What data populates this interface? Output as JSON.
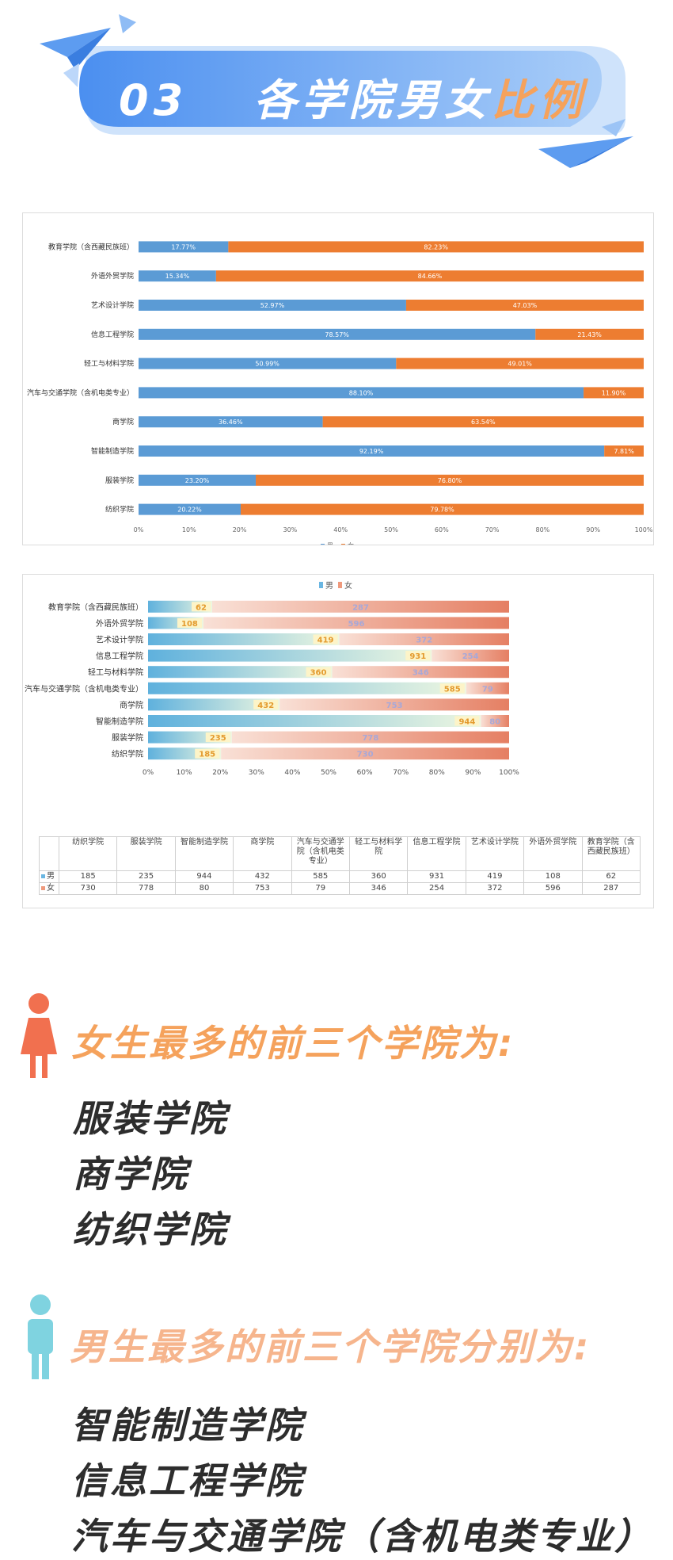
{
  "header": {
    "number": "03",
    "title_main": "各学院男女",
    "title_highlight": "比例"
  },
  "colors": {
    "male": "#5b9bd5",
    "female": "#ed7d31",
    "banner": "#6fa8ef",
    "female_title": "#f5a25c",
    "male_title": "#f6b58d",
    "female_figure": "#f1704f",
    "male_figure": "#7fd3e0"
  },
  "chart_data": [
    {
      "type": "bar",
      "orientation": "horizontal",
      "stacked": "percent",
      "categories": [
        "教育学院（含西藏民族班）",
        "外语外贸学院",
        "艺术设计学院",
        "信息工程学院",
        "轻工与材料学院",
        "汽车与交通学院（含机电类专业）",
        "商学院",
        "智能制造学院",
        "服装学院",
        "纺织学院"
      ],
      "series": [
        {
          "name": "男",
          "values": [
            17.77,
            15.34,
            52.97,
            78.57,
            50.99,
            88.1,
            36.46,
            92.19,
            23.2,
            20.22
          ],
          "labels": [
            "17.77%",
            "15.34%",
            "52.97%",
            "78.57%",
            "50.99%",
            "88.10%",
            "36.46%",
            "92.19%",
            "23.20%",
            "20.22%"
          ]
        },
        {
          "name": "女",
          "values": [
            82.23,
            84.66,
            47.03,
            21.43,
            49.01,
            11.9,
            63.54,
            7.81,
            76.8,
            79.78
          ],
          "labels": [
            "82.23%",
            "84.66%",
            "47.03%",
            "21.43%",
            "49.01%",
            "11.90%",
            "63.54%",
            "7.81%",
            "76.80%",
            "79.78%"
          ]
        }
      ],
      "xticks": [
        "0%",
        "10%",
        "20%",
        "30%",
        "40%",
        "50%",
        "60%",
        "70%",
        "80%",
        "90%",
        "100%"
      ],
      "xlim": [
        0,
        100
      ],
      "legend": "bottom-center",
      "grid": false
    },
    {
      "type": "bar",
      "orientation": "horizontal",
      "stacked": "percent",
      "categories": [
        "教育学院（含西藏民族班）",
        "外语外贸学院",
        "艺术设计学院",
        "信息工程学院",
        "轻工与材料学院",
        "汽车与交通学院（含机电类专业）",
        "商学院",
        "智能制造学院",
        "服装学院",
        "纺织学院"
      ],
      "series": [
        {
          "name": "男",
          "values": [
            62,
            108,
            419,
            931,
            360,
            585,
            432,
            944,
            235,
            185
          ]
        },
        {
          "name": "女",
          "values": [
            287,
            596,
            372,
            254,
            346,
            79,
            753,
            80,
            778,
            730
          ]
        }
      ],
      "xticks": [
        "0%",
        "10%",
        "20%",
        "30%",
        "40%",
        "50%",
        "60%",
        "70%",
        "80%",
        "90%",
        "100%"
      ],
      "xlim": [
        0,
        100
      ],
      "legend": "top-center",
      "grid": false,
      "table": {
        "columns": [
          "纺织学院",
          "服装学院",
          "智能制造学院",
          "商学院",
          "汽车与交通学院（含机电类专业）",
          "轻工与材料学院",
          "信息工程学院",
          "艺术设计学院",
          "外语外贸学院",
          "教育学院（含西藏民族班）"
        ],
        "rows": [
          {
            "name": "男",
            "values": [
              185,
              235,
              944,
              432,
              585,
              360,
              931,
              419,
              108,
              62
            ]
          },
          {
            "name": "女",
            "values": [
              730,
              778,
              80,
              753,
              79,
              346,
              254,
              372,
              596,
              287
            ]
          }
        ]
      }
    }
  ],
  "female_section": {
    "title": "女生最多的前三个学院为:",
    "items": [
      "服装学院",
      "商学院",
      "纺织学院"
    ]
  },
  "male_section": {
    "title": "男生最多的前三个学院分别为:",
    "items": [
      "智能制造学院",
      "信息工程学院",
      "汽车与交通学院（含机电类专业）"
    ]
  }
}
